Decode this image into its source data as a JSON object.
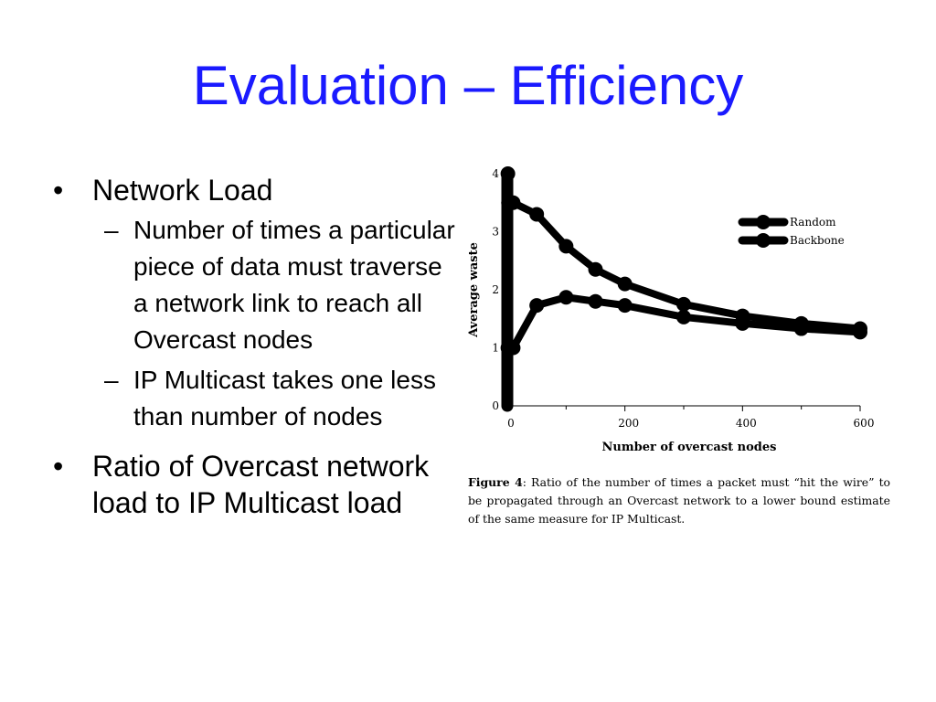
{
  "slide": {
    "title": "Evaluation – Efficiency",
    "bullets": [
      {
        "text": "Network Load",
        "sub": [
          "Number of times a particular piece of data must traverse a network link to reach all Overcast nodes",
          "IP Multicast takes one less than number of nodes"
        ]
      },
      {
        "text": "Ratio of Overcast network load to IP Multicast load"
      }
    ],
    "bullet_symbol": "•",
    "sub_bullet_symbol": "–"
  },
  "figure": {
    "caption_label": "Figure 4",
    "caption_text": ": Ratio of the number of times a packet must “hit the wire” to be propagated through an Overcast network to a lower bound estimate of the same measure for IP Multicast."
  },
  "chart_data": {
    "type": "line",
    "title": "",
    "xlabel": "Number of overcast nodes",
    "ylabel": "Average waste",
    "xlim": [
      0,
      600
    ],
    "ylim": [
      0,
      4
    ],
    "xticks": [
      0,
      200,
      400,
      600
    ],
    "yticks": [
      0,
      1,
      2,
      3,
      4
    ],
    "legend_position": "top-right",
    "series": [
      {
        "name": "Random",
        "x": [
          1,
          2,
          5,
          10,
          50,
          100,
          150,
          200,
          300,
          400,
          500,
          600
        ],
        "y": [
          4.0,
          3.5,
          3.5,
          3.5,
          3.3,
          2.75,
          2.35,
          2.1,
          1.75,
          1.55,
          1.42,
          1.33
        ]
      },
      {
        "name": "Backbone",
        "x": [
          1,
          2,
          5,
          10,
          50,
          100,
          150,
          200,
          300,
          400,
          500,
          600
        ],
        "y": [
          1.0,
          1.0,
          1.0,
          1.0,
          1.73,
          1.87,
          1.8,
          1.73,
          1.53,
          1.42,
          1.33,
          1.27
        ]
      }
    ],
    "colors": {
      "line": "#000000"
    }
  }
}
